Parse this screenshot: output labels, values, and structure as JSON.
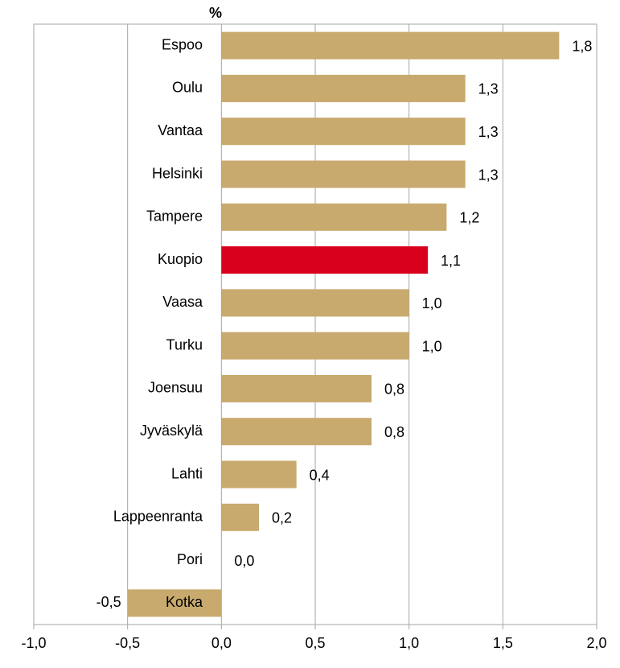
{
  "chart_data": {
    "type": "barh",
    "y_label": "%",
    "categories": [
      "Espoo",
      "Oulu",
      "Vantaa",
      "Helsinki",
      "Tampere",
      "Kuopio",
      "Vaasa",
      "Turku",
      "Joensuu",
      "Jyväskylä",
      "Lahti",
      "Lappeenranta",
      "Pori",
      "Kotka"
    ],
    "values": [
      1.8,
      1.3,
      1.3,
      1.3,
      1.2,
      1.1,
      1.0,
      1.0,
      0.8,
      0.8,
      0.4,
      0.2,
      0.0,
      -0.5
    ],
    "value_labels": [
      "1,8",
      "1,3",
      "1,3",
      "1,3",
      "1,2",
      "1,1",
      "1,0",
      "1,0",
      "0,8",
      "0,8",
      "0,4",
      "0,2",
      "0,0",
      "-0,5"
    ],
    "colors": [
      "#c8aa6e",
      "#c8aa6e",
      "#c8aa6e",
      "#c8aa6e",
      "#c8aa6e",
      "#d9001b",
      "#c8aa6e",
      "#c8aa6e",
      "#c8aa6e",
      "#c8aa6e",
      "#c8aa6e",
      "#c8aa6e",
      "#c8aa6e",
      "#c8aa6e"
    ],
    "xlim": [
      -1.0,
      2.0
    ],
    "xticks": [
      {
        "value": -1.0,
        "label": "-1,0"
      },
      {
        "value": -0.5,
        "label": "-0,5"
      },
      {
        "value": 0.0,
        "label": "0,0"
      },
      {
        "value": 0.5,
        "label": "0,5"
      },
      {
        "value": 1.0,
        "label": "1,0"
      },
      {
        "value": 1.5,
        "label": "1,5"
      },
      {
        "value": 2.0,
        "label": "2,0"
      }
    ],
    "grid": true
  }
}
